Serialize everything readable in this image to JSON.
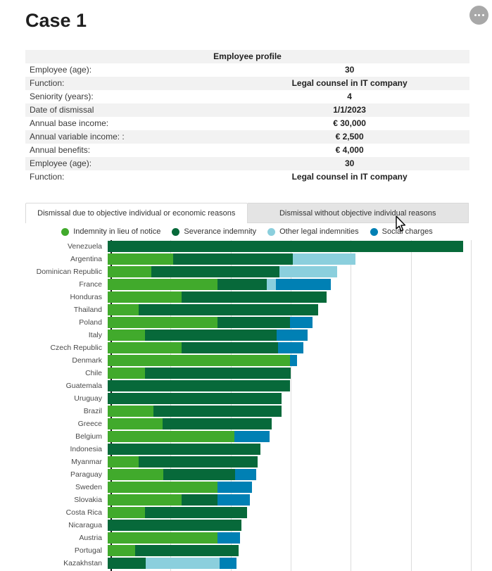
{
  "page": {
    "title": "Case 1",
    "more_options_icon": "more-options"
  },
  "profile": {
    "header": "Employee profile",
    "rows": [
      {
        "label": "Employee (age):",
        "value": "30"
      },
      {
        "label": "Function:",
        "value": "Legal counsel in IT company"
      },
      {
        "label": "Seniority (years):",
        "value": "4"
      },
      {
        "label": "Date of dismissal",
        "value": "1/1/2023"
      },
      {
        "label": "Annual base income:",
        "value": "€ 30,000"
      },
      {
        "label": "Annual variable income: :",
        "value": "€ 2,500"
      },
      {
        "label": "Annual benefits:",
        "value": "€ 4,000"
      },
      {
        "label": "Employee (age):",
        "value": "30"
      },
      {
        "label": "Function:",
        "value": "Legal counsel in IT company"
      }
    ]
  },
  "tabs": [
    {
      "label": "Dismissal due to objective individual or economic reasons",
      "active": true
    },
    {
      "label": "Dismissal without objective individual reasons",
      "active": false
    }
  ],
  "chart_data": {
    "type": "bar",
    "orientation": "horizontal-stacked",
    "title": "",
    "xlabel": "",
    "ylabel": "",
    "value_unit": "px (x-axis tick labels not visible in screenshot; gridlines unlabeled)",
    "x_axis": {
      "min": 0,
      "max": 533,
      "gridline_spacing": 85.3,
      "labels_visible": false
    },
    "legend_position": "top",
    "categories": [
      "Venezuela",
      "Argentina",
      "Dominican Republic",
      "France",
      "Honduras",
      "Thailand",
      "Poland",
      "Italy",
      "Czech Republic",
      "Denmark",
      "Chile",
      "Guatemala",
      "Uruguay",
      "Brazil",
      "Greece",
      "Belgium",
      "Indonesia",
      "Myanmar",
      "Paraguay",
      "Sweden",
      "Slovakia",
      "Costa Rica",
      "Nicaragua",
      "Austria",
      "Portugal",
      "Kazakhstan"
    ],
    "series": [
      {
        "name": "Indemnity in lieu of notice",
        "color": "#41aa2c",
        "values": [
          0,
          93,
          62,
          156,
          105,
          44,
          156,
          53,
          105,
          259,
          53,
          0,
          0,
          65,
          78,
          180,
          0,
          44,
          79,
          156,
          105,
          53,
          0,
          156,
          39,
          0
        ]
      },
      {
        "name": "Severance indemnity",
        "color": "#07693a",
        "values": [
          505,
          170,
          182,
          70,
          206,
          255,
          103,
          187,
          137,
          0,
          207,
          259,
          247,
          182,
          155,
          0,
          217,
          169,
          102,
          0,
          51,
          145,
          190,
          0,
          147,
          54
        ]
      },
      {
        "name": "Other legal indemnities",
        "color": "#8bcfdd",
        "values": [
          0,
          89,
          82,
          13,
          0,
          0,
          0,
          0,
          0,
          0,
          0,
          0,
          0,
          0,
          0,
          0,
          0,
          0,
          0,
          0,
          0,
          0,
          0,
          0,
          0,
          105
        ]
      },
      {
        "name": "Social charges",
        "color": "#0080b4",
        "values": [
          0,
          0,
          0,
          78,
          0,
          0,
          32,
          44,
          36,
          10,
          0,
          0,
          0,
          0,
          0,
          50,
          0,
          0,
          30,
          49,
          46,
          0,
          0,
          32,
          0,
          24
        ]
      }
    ]
  }
}
